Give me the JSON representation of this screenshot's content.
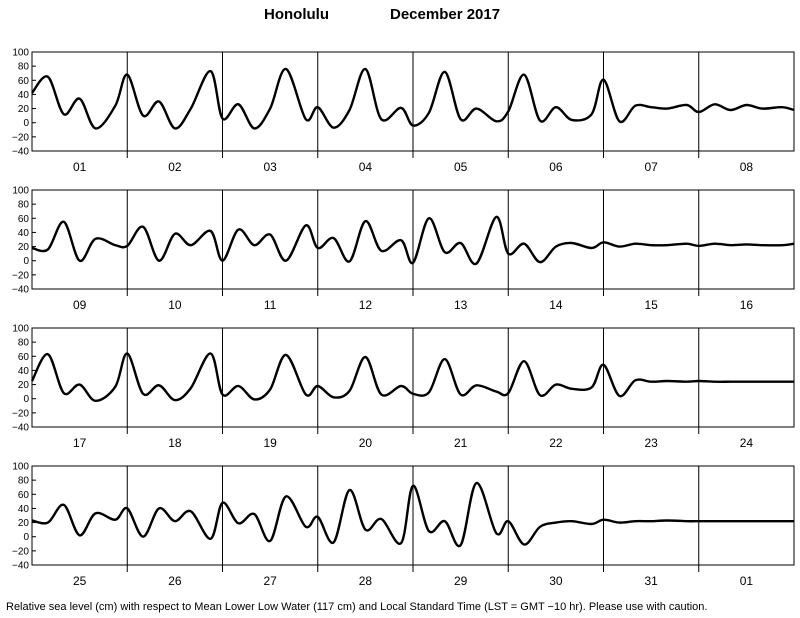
{
  "header": {
    "location": "Honolulu",
    "period": "December 2017"
  },
  "footnote": "Relative sea level (cm) with respect to Mean Lower Low Water (117 cm) and Local Standard Time (LST = GMT −10 hr). Please use with caution.",
  "chart_data": {
    "type": "line",
    "title": "Honolulu December 2017",
    "xlabel": "",
    "ylabel": "",
    "ylim": [
      -40,
      100
    ],
    "yticks": [
      -40,
      -20,
      0,
      20,
      40,
      60,
      80,
      100
    ],
    "grid": "day boundaries (vertical lines), no horizontal grid",
    "legend": "none",
    "line_color": "#000000",
    "units": "cm",
    "panels": [
      {
        "days": [
          "01",
          "02",
          "03",
          "04",
          "05",
          "06",
          "07",
          "08"
        ],
        "x_hours": [
          0,
          4,
          8,
          12,
          16,
          21,
          24,
          28,
          32,
          36,
          40,
          45,
          48,
          52,
          56,
          60,
          64,
          69,
          72,
          76,
          80,
          84,
          88,
          93,
          96,
          100,
          104,
          108,
          112,
          117,
          120,
          124,
          128,
          132,
          136,
          141,
          144,
          148,
          152,
          156,
          160,
          165,
          168,
          172,
          176,
          180,
          184,
          189,
          192
        ],
        "y_cm": [
          42,
          65,
          12,
          34,
          -8,
          24,
          68,
          10,
          30,
          -8,
          20,
          73,
          6,
          26,
          -8,
          20,
          76,
          5,
          22,
          -7,
          18,
          76,
          5,
          21,
          -4,
          14,
          72,
          5,
          20,
          2,
          16,
          68,
          3,
          22,
          4,
          12,
          61,
          2,
          24,
          22,
          20,
          25,
          15,
          26,
          18,
          25,
          20,
          22,
          18
        ]
      },
      {
        "days": [
          "09",
          "10",
          "11",
          "12",
          "13",
          "14",
          "15",
          "16"
        ],
        "x_hours": [
          0,
          4,
          8,
          12,
          16,
          21,
          24,
          28,
          32,
          36,
          40,
          45,
          48,
          52,
          56,
          60,
          64,
          69,
          72,
          76,
          80,
          84,
          88,
          93,
          96,
          100,
          104,
          108,
          112,
          117,
          120,
          124,
          128,
          132,
          136,
          141,
          144,
          148,
          152,
          156,
          160,
          165,
          168,
          172,
          176,
          180,
          184,
          189,
          192
        ],
        "y_cm": [
          18,
          16,
          55,
          0,
          31,
          22,
          21,
          48,
          0,
          38,
          22,
          42,
          0,
          44,
          22,
          37,
          0,
          50,
          18,
          32,
          -1,
          56,
          14,
          29,
          -3,
          60,
          12,
          25,
          -4,
          62,
          10,
          24,
          -2,
          20,
          25,
          18,
          26,
          20,
          24,
          22,
          22,
          24,
          21,
          24,
          22,
          23,
          22,
          22,
          24
        ]
      },
      {
        "days": [
          "17",
          "18",
          "19",
          "20",
          "21",
          "22",
          "23",
          "24"
        ],
        "x_hours": [
          0,
          4,
          8,
          12,
          16,
          21,
          24,
          28,
          32,
          36,
          40,
          45,
          48,
          52,
          56,
          60,
          64,
          69,
          72,
          76,
          80,
          84,
          88,
          93,
          96,
          100,
          104,
          108,
          112,
          117,
          120,
          124,
          128,
          132,
          136,
          141,
          144,
          148,
          152,
          156,
          160,
          165,
          168,
          172,
          176,
          180,
          184,
          189,
          192
        ],
        "y_cm": [
          25,
          63,
          8,
          20,
          -3,
          17,
          64,
          7,
          19,
          -2,
          15,
          64,
          6,
          18,
          -1,
          13,
          62,
          6,
          18,
          2,
          11,
          59,
          6,
          18,
          7,
          9,
          56,
          6,
          19,
          10,
          8,
          53,
          5,
          20,
          14,
          16,
          48,
          4,
          26,
          24,
          25,
          24,
          25,
          24,
          24,
          24,
          24,
          24,
          24
        ]
      },
      {
        "days": [
          "25",
          "26",
          "27",
          "28",
          "29",
          "30",
          "31",
          "01"
        ],
        "x_hours": [
          0,
          4,
          8,
          12,
          16,
          21,
          24,
          28,
          32,
          36,
          40,
          45,
          48,
          52,
          56,
          60,
          64,
          69,
          72,
          76,
          80,
          84,
          88,
          93,
          96,
          100,
          104,
          108,
          112,
          117,
          120,
          124,
          128,
          132,
          136,
          141,
          144,
          148,
          152,
          156,
          160,
          165,
          168,
          172,
          176,
          180,
          184,
          189,
          192
        ],
        "y_cm": [
          23,
          20,
          45,
          2,
          33,
          24,
          40,
          0,
          40,
          22,
          36,
          -3,
          48,
          19,
          32,
          -6,
          57,
          14,
          28,
          -8,
          66,
          10,
          25,
          -9,
          72,
          8,
          22,
          -12,
          76,
          5,
          22,
          -11,
          14,
          20,
          22,
          18,
          24,
          20,
          22,
          22,
          23,
          22,
          22,
          22,
          22,
          22,
          22,
          22,
          22
        ]
      }
    ]
  }
}
